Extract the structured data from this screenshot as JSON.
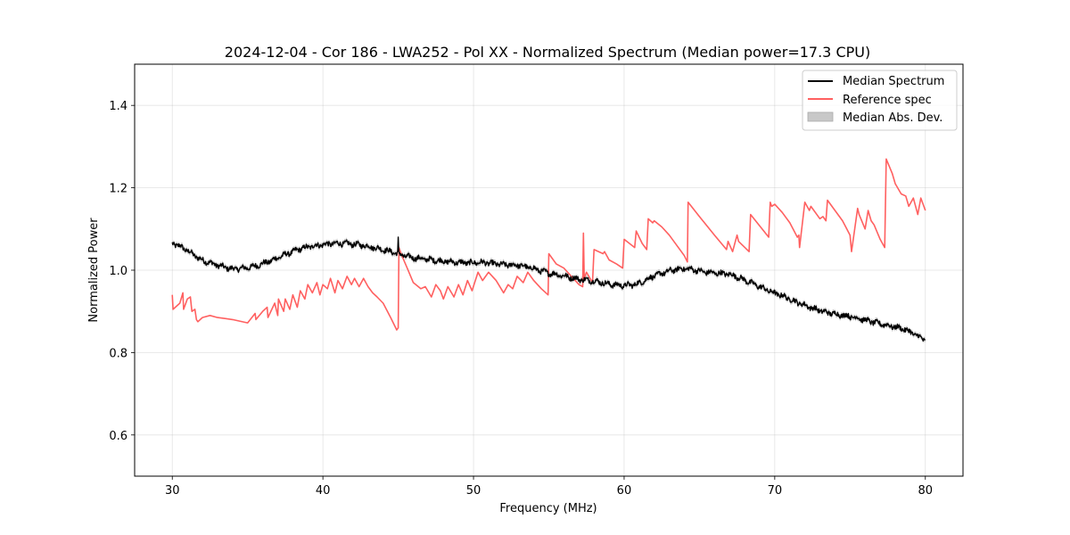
{
  "chart_data": {
    "type": "line",
    "title": "2024-12-04 - Cor 186 - LWA252 - Pol XX - Normalized Spectrum (Median power=17.3 CPU)",
    "xlabel": "Frequency (MHz)",
    "ylabel": "Normalized Power",
    "xlim": [
      27.5,
      82.5
    ],
    "ylim": [
      0.5,
      1.5
    ],
    "xticks": [
      30,
      40,
      50,
      60,
      70,
      80
    ],
    "xtick_labels": [
      "30",
      "40",
      "50",
      "60",
      "70",
      "80"
    ],
    "yticks": [
      0.6,
      0.8,
      1.0,
      1.2,
      1.4
    ],
    "ytick_labels": [
      "0.6",
      "0.8",
      "1.0",
      "1.2",
      "1.4"
    ],
    "grid": true,
    "legend": {
      "placement": "top-right",
      "entries": [
        {
          "label": "Median Spectrum",
          "kind": "line",
          "color": "#000000"
        },
        {
          "label": "Reference spec",
          "kind": "line",
          "color": "#ff6060"
        },
        {
          "label": "Median Abs. Dev.",
          "kind": "patch",
          "color": "#c8c8c8"
        }
      ]
    },
    "series": [
      {
        "name": "Median Spectrum",
        "color": "#000000",
        "x": [
          30.0,
          30.5,
          31.0,
          31.5,
          32.0,
          32.5,
          33.0,
          33.5,
          34.0,
          34.5,
          35.0,
          35.5,
          36.0,
          36.5,
          37.0,
          37.5,
          38.0,
          38.5,
          39.0,
          39.5,
          40.0,
          40.5,
          41.0,
          41.5,
          42.0,
          42.5,
          43.0,
          43.5,
          44.0,
          44.5,
          45.0,
          45.5,
          46.0,
          46.5,
          47.0,
          47.5,
          48.0,
          48.5,
          49.0,
          49.5,
          50.0,
          50.5,
          51.0,
          51.5,
          52.0,
          52.5,
          53.0,
          53.5,
          54.0,
          54.5,
          55.0,
          55.5,
          56.0,
          56.5,
          57.0,
          57.5,
          58.0,
          58.5,
          59.0,
          59.5,
          60.0,
          60.5,
          61.0,
          61.5,
          62.0,
          62.5,
          63.0,
          63.5,
          64.0,
          64.5,
          65.0,
          65.5,
          66.0,
          66.5,
          67.0,
          67.5,
          68.0,
          68.5,
          69.0,
          69.5,
          70.0,
          70.5,
          71.0,
          71.5,
          72.0,
          72.5,
          73.0,
          73.5,
          74.0,
          74.5,
          75.0,
          75.5,
          76.0,
          76.5,
          77.0,
          77.5,
          78.0,
          78.5,
          79.0,
          79.5,
          80.0
        ],
        "y": [
          1.065,
          1.058,
          1.048,
          1.035,
          1.024,
          1.018,
          1.012,
          1.007,
          1.003,
          1.004,
          1.006,
          1.01,
          1.016,
          1.022,
          1.03,
          1.038,
          1.045,
          1.052,
          1.056,
          1.06,
          1.062,
          1.064,
          1.065,
          1.065,
          1.063,
          1.061,
          1.058,
          1.054,
          1.05,
          1.045,
          1.04,
          1.034,
          1.03,
          1.028,
          1.026,
          1.024,
          1.022,
          1.02,
          1.019,
          1.018,
          1.018,
          1.019,
          1.017,
          1.015,
          1.013,
          1.013,
          1.012,
          1.008,
          1.004,
          0.998,
          0.993,
          0.99,
          0.986,
          0.982,
          0.978,
          0.976,
          0.974,
          0.97,
          0.966,
          0.964,
          0.963,
          0.964,
          0.968,
          0.978,
          0.986,
          0.992,
          0.998,
          1.002,
          1.004,
          1.002,
          0.998,
          0.995,
          0.993,
          0.992,
          0.99,
          0.984,
          0.976,
          0.968,
          0.96,
          0.952,
          0.944,
          0.938,
          0.93,
          0.922,
          0.915,
          0.908,
          0.902,
          0.897,
          0.894,
          0.891,
          0.888,
          0.884,
          0.879,
          0.874,
          0.87,
          0.866,
          0.862,
          0.858,
          0.85,
          0.84,
          0.83
        ],
        "mad": 0.006
      },
      {
        "name": "Reference spec",
        "color": "#ff6060",
        "x": [
          30.0,
          30.05,
          30.5,
          30.7,
          30.75,
          31.0,
          31.2,
          31.3,
          31.5,
          31.6,
          31.7,
          32.0,
          32.5,
          33.0,
          34.0,
          35.0,
          35.5,
          35.55,
          36.0,
          36.3,
          36.35,
          36.8,
          37.0,
          37.05,
          37.4,
          37.5,
          37.8,
          38.0,
          38.3,
          38.5,
          38.8,
          39.0,
          39.3,
          39.6,
          39.8,
          40.0,
          40.3,
          40.5,
          40.8,
          41.0,
          41.3,
          41.6,
          41.9,
          42.1,
          42.4,
          42.7,
          43.0,
          43.3,
          43.6,
          44.0,
          44.5,
          44.9,
          45.0,
          45.05,
          45.3,
          45.6,
          46.0,
          46.5,
          46.8,
          47.2,
          47.5,
          47.8,
          48.0,
          48.3,
          48.7,
          49.0,
          49.3,
          49.6,
          49.9,
          50.3,
          50.6,
          51.0,
          51.5,
          52.0,
          52.3,
          52.6,
          52.9,
          53.3,
          53.6,
          54.0,
          54.5,
          54.95,
          55.0,
          55.5,
          56.0,
          56.5,
          57.0,
          57.25,
          57.3,
          57.35,
          57.5,
          57.9,
          58.0,
          58.6,
          58.7,
          59.0,
          59.5,
          59.9,
          60.0,
          60.7,
          60.8,
          61.2,
          61.5,
          61.6,
          61.9,
          62.0,
          62.5,
          63.0,
          63.5,
          64.0,
          64.2,
          64.25,
          65.0,
          66.0,
          66.8,
          66.9,
          67.2,
          67.5,
          67.6,
          68.3,
          68.4,
          69.6,
          69.7,
          69.8,
          70.0,
          70.5,
          71.0,
          71.5,
          71.6,
          71.65,
          72.0,
          72.3,
          72.4,
          73.0,
          73.2,
          73.4,
          73.5,
          74.0,
          74.5,
          75.0,
          75.1,
          75.5,
          75.6,
          76.0,
          76.2,
          76.4,
          76.6,
          77.0,
          77.3,
          77.4,
          77.8,
          78.0,
          78.4,
          78.7,
          78.9,
          79.2,
          79.5,
          79.7,
          80.0
        ],
        "y": [
          0.94,
          0.905,
          0.92,
          0.945,
          0.905,
          0.93,
          0.935,
          0.9,
          0.905,
          0.88,
          0.875,
          0.885,
          0.89,
          0.885,
          0.88,
          0.872,
          0.895,
          0.88,
          0.9,
          0.91,
          0.885,
          0.92,
          0.89,
          0.93,
          0.9,
          0.93,
          0.905,
          0.94,
          0.91,
          0.95,
          0.93,
          0.965,
          0.945,
          0.97,
          0.94,
          0.965,
          0.955,
          0.98,
          0.945,
          0.975,
          0.955,
          0.985,
          0.965,
          0.98,
          0.96,
          0.98,
          0.96,
          0.945,
          0.935,
          0.92,
          0.885,
          0.855,
          0.86,
          1.055,
          1.03,
          1.005,
          0.97,
          0.955,
          0.96,
          0.935,
          0.965,
          0.95,
          0.93,
          0.96,
          0.935,
          0.965,
          0.94,
          0.975,
          0.95,
          0.995,
          0.975,
          0.995,
          0.975,
          0.945,
          0.965,
          0.955,
          0.985,
          0.97,
          0.995,
          0.975,
          0.955,
          0.94,
          1.04,
          1.015,
          1.005,
          0.985,
          0.965,
          0.96,
          1.09,
          0.98,
          0.995,
          0.97,
          1.05,
          1.04,
          1.045,
          1.025,
          1.015,
          1.005,
          1.075,
          1.055,
          1.095,
          1.065,
          1.05,
          1.125,
          1.115,
          1.12,
          1.105,
          1.085,
          1.06,
          1.035,
          1.02,
          1.165,
          1.13,
          1.085,
          1.05,
          1.07,
          1.045,
          1.085,
          1.07,
          1.045,
          1.135,
          1.08,
          1.165,
          1.155,
          1.16,
          1.14,
          1.115,
          1.08,
          1.085,
          1.055,
          1.165,
          1.145,
          1.155,
          1.125,
          1.13,
          1.12,
          1.17,
          1.145,
          1.12,
          1.085,
          1.045,
          1.15,
          1.135,
          1.1,
          1.145,
          1.12,
          1.11,
          1.075,
          1.055,
          1.27,
          1.235,
          1.21,
          1.185,
          1.18,
          1.155,
          1.175,
          1.135,
          1.175,
          1.145
        ]
      }
    ],
    "spike": {
      "series": "Median Spectrum",
      "x": 45.0,
      "y": 1.08
    }
  }
}
